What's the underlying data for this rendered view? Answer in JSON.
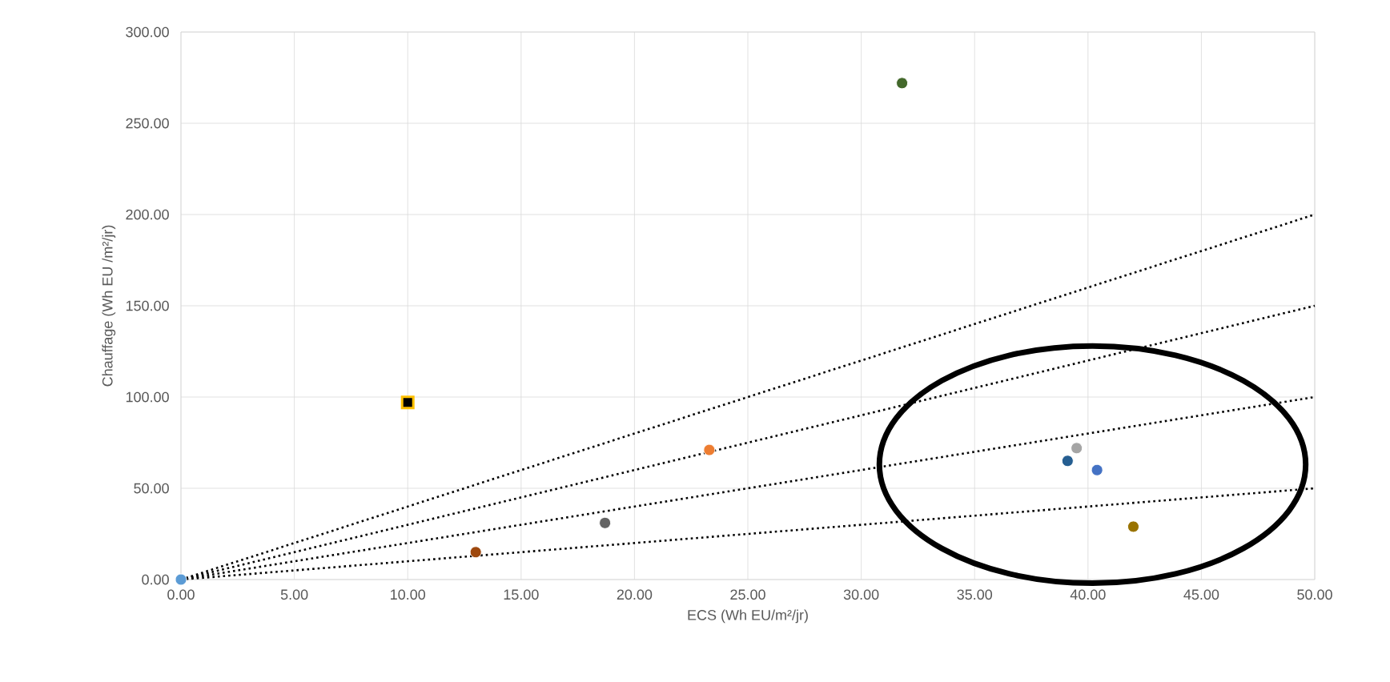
{
  "chart_data": {
    "type": "scatter",
    "xlabel": "ECS (Wh EU/m²/jr)",
    "ylabel": "Chauffage (Wh EU /m²/jr)",
    "xlim": [
      0,
      50
    ],
    "ylim": [
      0,
      300
    ],
    "xticks": [
      {
        "value": 0,
        "label": "0.00"
      },
      {
        "value": 5,
        "label": "5.00"
      },
      {
        "value": 10,
        "label": "10.00"
      },
      {
        "value": 15,
        "label": "15.00"
      },
      {
        "value": 20,
        "label": "20.00"
      },
      {
        "value": 25,
        "label": "25.00"
      },
      {
        "value": 30,
        "label": "30.00"
      },
      {
        "value": 35,
        "label": "35.00"
      },
      {
        "value": 40,
        "label": "40.00"
      },
      {
        "value": 45,
        "label": "45.00"
      },
      {
        "value": 50,
        "label": "50.00"
      }
    ],
    "yticks": [
      {
        "value": 0,
        "label": "0.00"
      },
      {
        "value": 50,
        "label": "50.00"
      },
      {
        "value": 100,
        "label": "100.00"
      },
      {
        "value": 150,
        "label": "150.00"
      },
      {
        "value": 200,
        "label": "200.00"
      },
      {
        "value": 250,
        "label": "250.00"
      },
      {
        "value": 300,
        "label": "300.00"
      }
    ],
    "grid": true,
    "series": [
      {
        "marker": "circle",
        "x": [
          0,
          13,
          18.7,
          23.3,
          31.8,
          39.1,
          39.5,
          40.4,
          42
        ],
        "values": [
          0,
          15,
          31,
          71,
          272,
          65,
          72,
          60,
          29
        ],
        "colors": [
          "#5b9bd5",
          "#9e480e",
          "#636363",
          "#ed7d31",
          "#43682b",
          "#255e91",
          "#a5a5a5",
          "#4472c4",
          "#997300"
        ]
      },
      {
        "marker": "square",
        "color": "#000000",
        "x": [
          10
        ],
        "values": [
          97
        ]
      },
      {
        "type": "line",
        "marker": "none",
        "line_style": "dotted",
        "color": "#000000",
        "x": [
          0,
          50
        ],
        "values": [
          0,
          200
        ]
      },
      {
        "type": "line",
        "marker": "none",
        "line_style": "dotted",
        "color": "#000000",
        "x": [
          0,
          50
        ],
        "values": [
          0,
          150
        ]
      },
      {
        "type": "line",
        "marker": "none",
        "line_style": "dotted",
        "color": "#000000",
        "x": [
          0,
          50
        ],
        "values": [
          0,
          100
        ]
      },
      {
        "type": "line",
        "marker": "none",
        "line_style": "dotted",
        "color": "#000000",
        "x": [
          0,
          50
        ],
        "values": [
          0,
          50
        ]
      }
    ]
  }
}
